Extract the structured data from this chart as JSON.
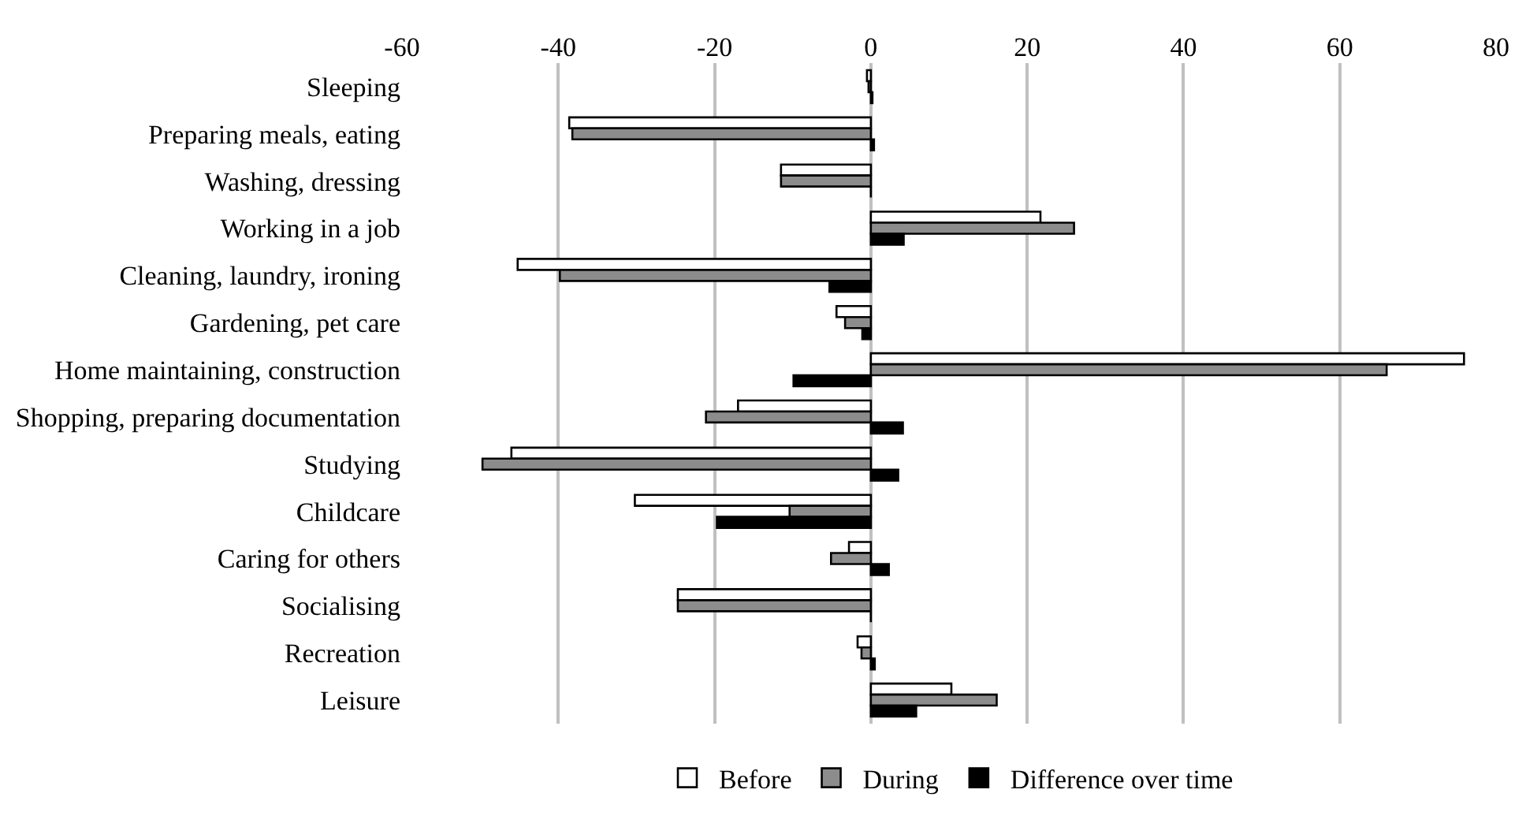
{
  "chart_data": {
    "type": "bar",
    "orientation": "horizontal",
    "categories": [
      "Sleeping",
      "Preparing meals, eating",
      "Washing, dressing",
      "Working in a job",
      "Cleaning, laundry, ironing",
      "Gardening, pet care",
      "Home maintaining, construction",
      "Shopping, preparing documentation",
      "Studying",
      "Childcare",
      "Caring for others",
      "Socialising",
      "Recreation",
      "Leisure"
    ],
    "series": [
      {
        "name": "Before",
        "color": "#ffffff",
        "values": [
          -0.5,
          -38.6,
          -11.5,
          21.7,
          -45.2,
          -4.4,
          75.9,
          -17,
          -46,
          -30.2,
          -2.8,
          -24.7,
          -1.7,
          10.3
        ]
      },
      {
        "name": "During",
        "color": "#8c8c8c",
        "values": [
          -0.3,
          -38.2,
          -11.5,
          26,
          -39.8,
          -3.3,
          66,
          -21.1,
          -49.7,
          -10.4,
          -5.1,
          -24.7,
          -1.2,
          16.1
        ]
      },
      {
        "name": "Difference over time",
        "color": "#000000",
        "values": [
          0.2,
          0.4,
          0,
          4.2,
          -5.3,
          -1.1,
          -9.9,
          4.1,
          3.5,
          -19.7,
          2.3,
          0,
          0.5,
          5.8
        ]
      }
    ],
    "xlim": [
      -60,
      80
    ],
    "xticks": [
      -60,
      -40,
      -20,
      0,
      20,
      40,
      60,
      80
    ],
    "grid": "x",
    "legend": "bottom"
  }
}
